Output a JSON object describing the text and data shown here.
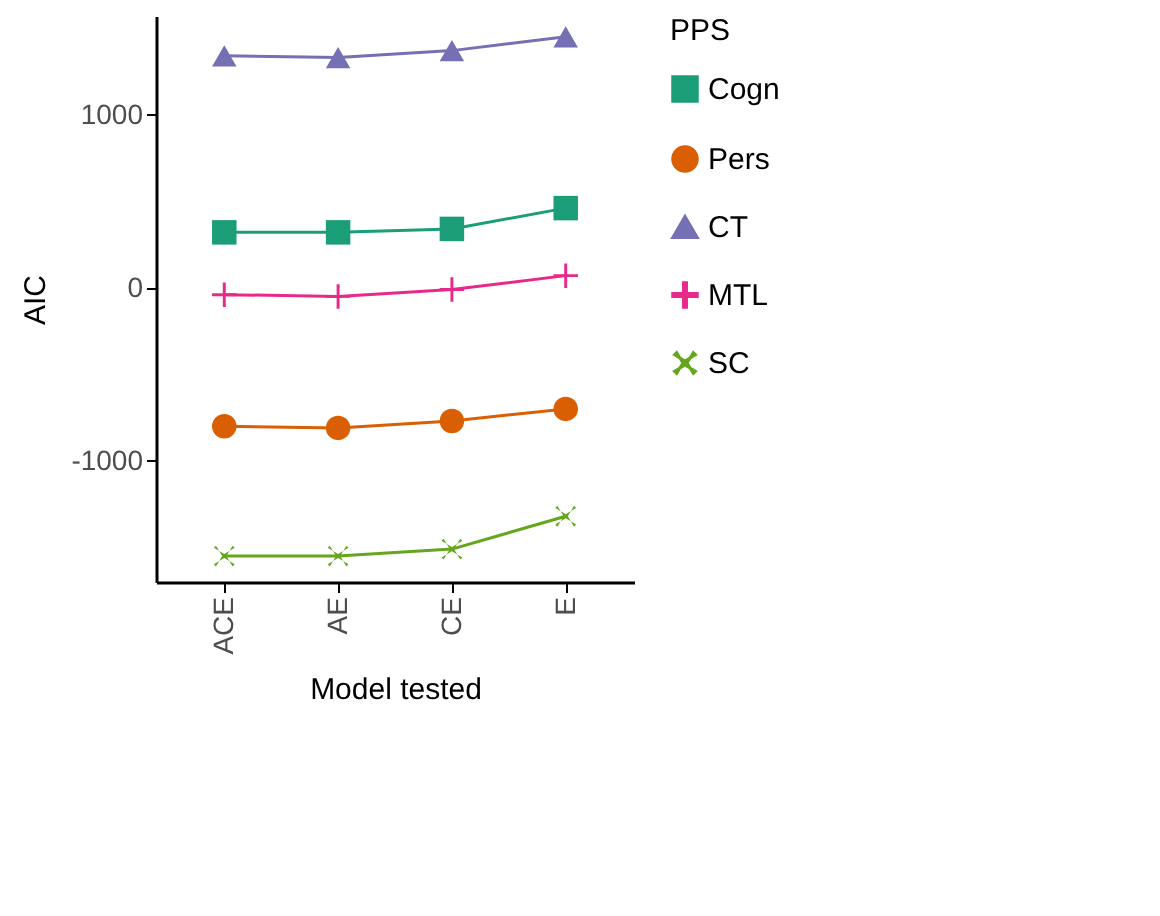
{
  "chart_data": {
    "type": "line",
    "xlabel": "Model tested",
    "ylabel": "AIC",
    "legend_title": "PPS",
    "legend": "right",
    "grid": false,
    "categories": [
      "ACE",
      "AE",
      "CE",
      "E"
    ],
    "ylim": [
      -1700,
      1570
    ],
    "yticks": [
      -1000,
      0,
      1000
    ],
    "series": [
      {
        "name": "Cogn",
        "color": "#1b9e77",
        "marker": "square",
        "values": [
          320,
          320,
          340,
          460
        ]
      },
      {
        "name": "Pers",
        "color": "#d95f02",
        "marker": "circle",
        "values": [
          -800,
          -810,
          -770,
          -700
        ]
      },
      {
        "name": "CT",
        "color": "#7570b3",
        "marker": "triangle",
        "values": [
          1340,
          1330,
          1370,
          1450
        ]
      },
      {
        "name": "MTL",
        "color": "#e7298a",
        "marker": "plus",
        "values": [
          -40,
          -50,
          -10,
          70
        ]
      },
      {
        "name": "SC",
        "color": "#66a61e",
        "marker": "cross",
        "values": [
          -1550,
          -1550,
          -1510,
          -1320
        ]
      }
    ]
  }
}
